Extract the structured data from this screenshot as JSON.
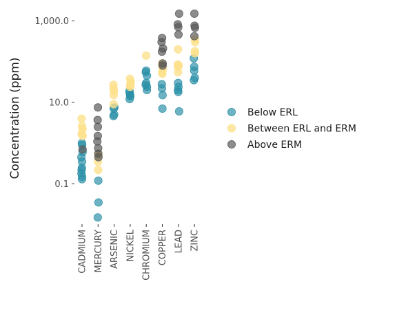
{
  "chart_data": {
    "type": "scatter",
    "ylabel": "Concentration (ppm)",
    "xlabel": "",
    "y_scale": "log10",
    "ylim": [
      0.012,
      2200
    ],
    "y_ticks": [
      {
        "value": 0.1,
        "label": "0.1"
      },
      {
        "value": 10,
        "label": "10.0"
      },
      {
        "value": 1000,
        "label": "1,000.0"
      }
    ],
    "categories": [
      "CADMIUM",
      "MERCURY",
      "ARSENIC",
      "NICKEL",
      "CHROMIUM",
      "COPPER",
      "LEAD",
      "ZINC"
    ],
    "grid": false,
    "legend_position": "right",
    "series": [
      {
        "name": "Below ERL",
        "color": "#2a8fa6",
        "points": [
          [
            "CADMIUM",
            0.13
          ],
          [
            "CADMIUM",
            0.15
          ],
          [
            "CADMIUM",
            0.18
          ],
          [
            "CADMIUM",
            0.22
          ],
          [
            "CADMIUM",
            0.25
          ],
          [
            "CADMIUM",
            0.35
          ],
          [
            "CADMIUM",
            0.45
          ],
          [
            "CADMIUM",
            0.6
          ],
          [
            "CADMIUM",
            0.9
          ],
          [
            "CADMIUM",
            1.0
          ],
          [
            "MERCURY",
            0.015
          ],
          [
            "MERCURY",
            0.035
          ],
          [
            "MERCURY",
            0.12
          ],
          [
            "ARSENIC",
            4.6
          ],
          [
            "ARSENIC",
            5.0
          ],
          [
            "ARSENIC",
            7.0
          ],
          [
            "ARSENIC",
            7.5
          ],
          [
            "NICKEL",
            12
          ],
          [
            "NICKEL",
            14
          ],
          [
            "NICKEL",
            15
          ],
          [
            "NICKEL",
            17
          ],
          [
            "NICKEL",
            19
          ],
          [
            "CHROMIUM",
            20
          ],
          [
            "CHROMIUM",
            24
          ],
          [
            "CHROMIUM",
            27
          ],
          [
            "CHROMIUM",
            30
          ],
          [
            "CHROMIUM",
            45
          ],
          [
            "CHROMIUM",
            55
          ],
          [
            "CHROMIUM",
            60
          ],
          [
            "COPPER",
            7
          ],
          [
            "COPPER",
            15
          ],
          [
            "COPPER",
            22
          ],
          [
            "COPPER",
            28
          ],
          [
            "LEAD",
            6
          ],
          [
            "LEAD",
            18
          ],
          [
            "LEAD",
            20
          ],
          [
            "LEAD",
            24
          ],
          [
            "LEAD",
            30
          ],
          [
            "ZINC",
            35
          ],
          [
            "ZINC",
            40
          ],
          [
            "ZINC",
            60
          ],
          [
            "ZINC",
            75
          ],
          [
            "ZINC",
            120
          ]
        ]
      },
      {
        "name": "Between ERL and ERM",
        "color": "#fde08a",
        "points": [
          [
            "CADMIUM",
            1.5
          ],
          [
            "CADMIUM",
            1.7
          ],
          [
            "CADMIUM",
            2.2
          ],
          [
            "CADMIUM",
            2.6
          ],
          [
            "CADMIUM",
            4.0
          ],
          [
            "MERCURY",
            0.22
          ],
          [
            "MERCURY",
            0.35
          ],
          [
            "MERCURY",
            0.5
          ],
          [
            "MERCURY",
            0.55
          ],
          [
            "ARSENIC",
            9
          ],
          [
            "ARSENIC",
            15
          ],
          [
            "ARSENIC",
            19
          ],
          [
            "ARSENIC",
            22
          ],
          [
            "ARSENIC",
            27
          ],
          [
            "NICKEL",
            24
          ],
          [
            "NICKEL",
            26
          ],
          [
            "NICKEL",
            28
          ],
          [
            "NICKEL",
            32
          ],
          [
            "NICKEL",
            38
          ],
          [
            "CHROMIUM",
            140
          ],
          [
            "COPPER",
            50
          ],
          [
            "COPPER",
            55
          ],
          [
            "COPPER",
            65
          ],
          [
            "COPPER",
            80
          ],
          [
            "COPPER",
            90
          ],
          [
            "LEAD",
            55
          ],
          [
            "LEAD",
            75
          ],
          [
            "LEAD",
            80
          ],
          [
            "LEAD",
            85
          ],
          [
            "LEAD",
            200
          ],
          [
            "ZINC",
            160
          ],
          [
            "ZINC",
            180
          ],
          [
            "ZINC",
            300
          ],
          [
            "ZINC",
            350
          ]
        ]
      },
      {
        "name": "Above ERM",
        "color": "#555555",
        "points": [
          [
            "CADMIUM",
            0.7
          ],
          [
            "MERCURY",
            0.45
          ],
          [
            "MERCURY",
            0.55
          ],
          [
            "MERCURY",
            0.75
          ],
          [
            "MERCURY",
            1.1
          ],
          [
            "MERCURY",
            1.5
          ],
          [
            "MERCURY",
            2.5
          ],
          [
            "MERCURY",
            3.7
          ],
          [
            "MERCURY",
            7.5
          ],
          [
            "COPPER",
            80
          ],
          [
            "COPPER",
            90
          ],
          [
            "COPPER",
            175
          ],
          [
            "COPPER",
            210
          ],
          [
            "COPPER",
            300
          ],
          [
            "COPPER",
            380
          ],
          [
            "LEAD",
            460
          ],
          [
            "LEAD",
            700
          ],
          [
            "LEAD",
            820
          ],
          [
            "LEAD",
            1500
          ],
          [
            "ZINC",
            420
          ],
          [
            "ZINC",
            680
          ],
          [
            "ZINC",
            760
          ],
          [
            "ZINC",
            1500
          ]
        ]
      }
    ]
  }
}
